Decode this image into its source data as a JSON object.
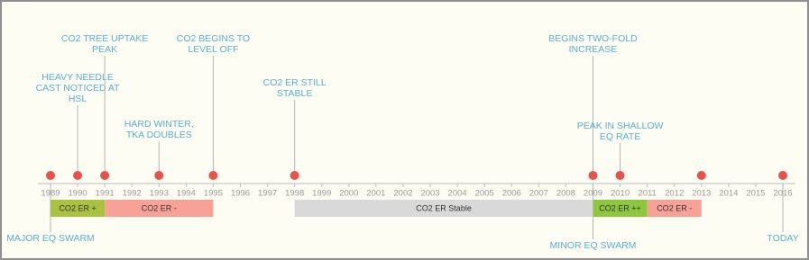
{
  "axis_years": [
    1989,
    1990,
    1991,
    1992,
    1993,
    1994,
    1995,
    1996,
    1997,
    1998,
    1999,
    2000,
    2001,
    2002,
    2003,
    2004,
    2005,
    2006,
    2007,
    2008,
    2009,
    2010,
    2011,
    2012,
    2013,
    2014,
    2015,
    2016
  ],
  "dots": [
    1989,
    1990,
    1991,
    1993,
    1995,
    1998,
    2009,
    2010,
    2013,
    2016
  ],
  "labels_above": [
    {
      "year": 1990,
      "lines": [
        "HEAVY NEEDLE",
        "CAST NOTICED AT",
        "HSL"
      ]
    },
    {
      "year": 1991,
      "lines": [
        "CO2 TREE UPTAKE",
        "PEAK"
      ]
    },
    {
      "year": 1993,
      "lines": [
        "HARD WINTER,",
        "TKA DOUBLES"
      ]
    },
    {
      "year": 1995,
      "lines": [
        "CO2 BEGINS TO",
        "LEVEL OFF"
      ]
    },
    {
      "year": 1998,
      "lines": [
        "CO2 ER STILL",
        "STABLE"
      ]
    },
    {
      "year": 2009,
      "lines": [
        "BEGINS TWO-FOLD",
        "INCREASE"
      ]
    },
    {
      "year": 2010,
      "lines": [
        "PEAK IN SHALLOW",
        "EQ RATE"
      ]
    }
  ],
  "labels_below": [
    {
      "year": 1989,
      "lines": [
        "MAJOR EQ SWARM"
      ]
    },
    {
      "year": 2009,
      "lines": [
        "MINOR EQ SWARM"
      ]
    },
    {
      "year": 2016,
      "lines": [
        "TODAY"
      ]
    }
  ],
  "periods": [
    {
      "start": 1989,
      "end": 1991,
      "label": "CO2 ER +",
      "color": "#a9c23f"
    },
    {
      "start": 1991,
      "end": 1995,
      "label": "CO2 ER -",
      "color": "#f8a197"
    },
    {
      "start": 1998,
      "end": 2009,
      "label": "CO2 ER Stable",
      "color": "#d9d9d9"
    },
    {
      "start": 2009,
      "end": 2011,
      "label": "CO2 ER ++",
      "color": "#8dc63f"
    },
    {
      "start": 2011,
      "end": 2013,
      "label": "CO2 ER -",
      "color": "#f8a197"
    }
  ]
}
